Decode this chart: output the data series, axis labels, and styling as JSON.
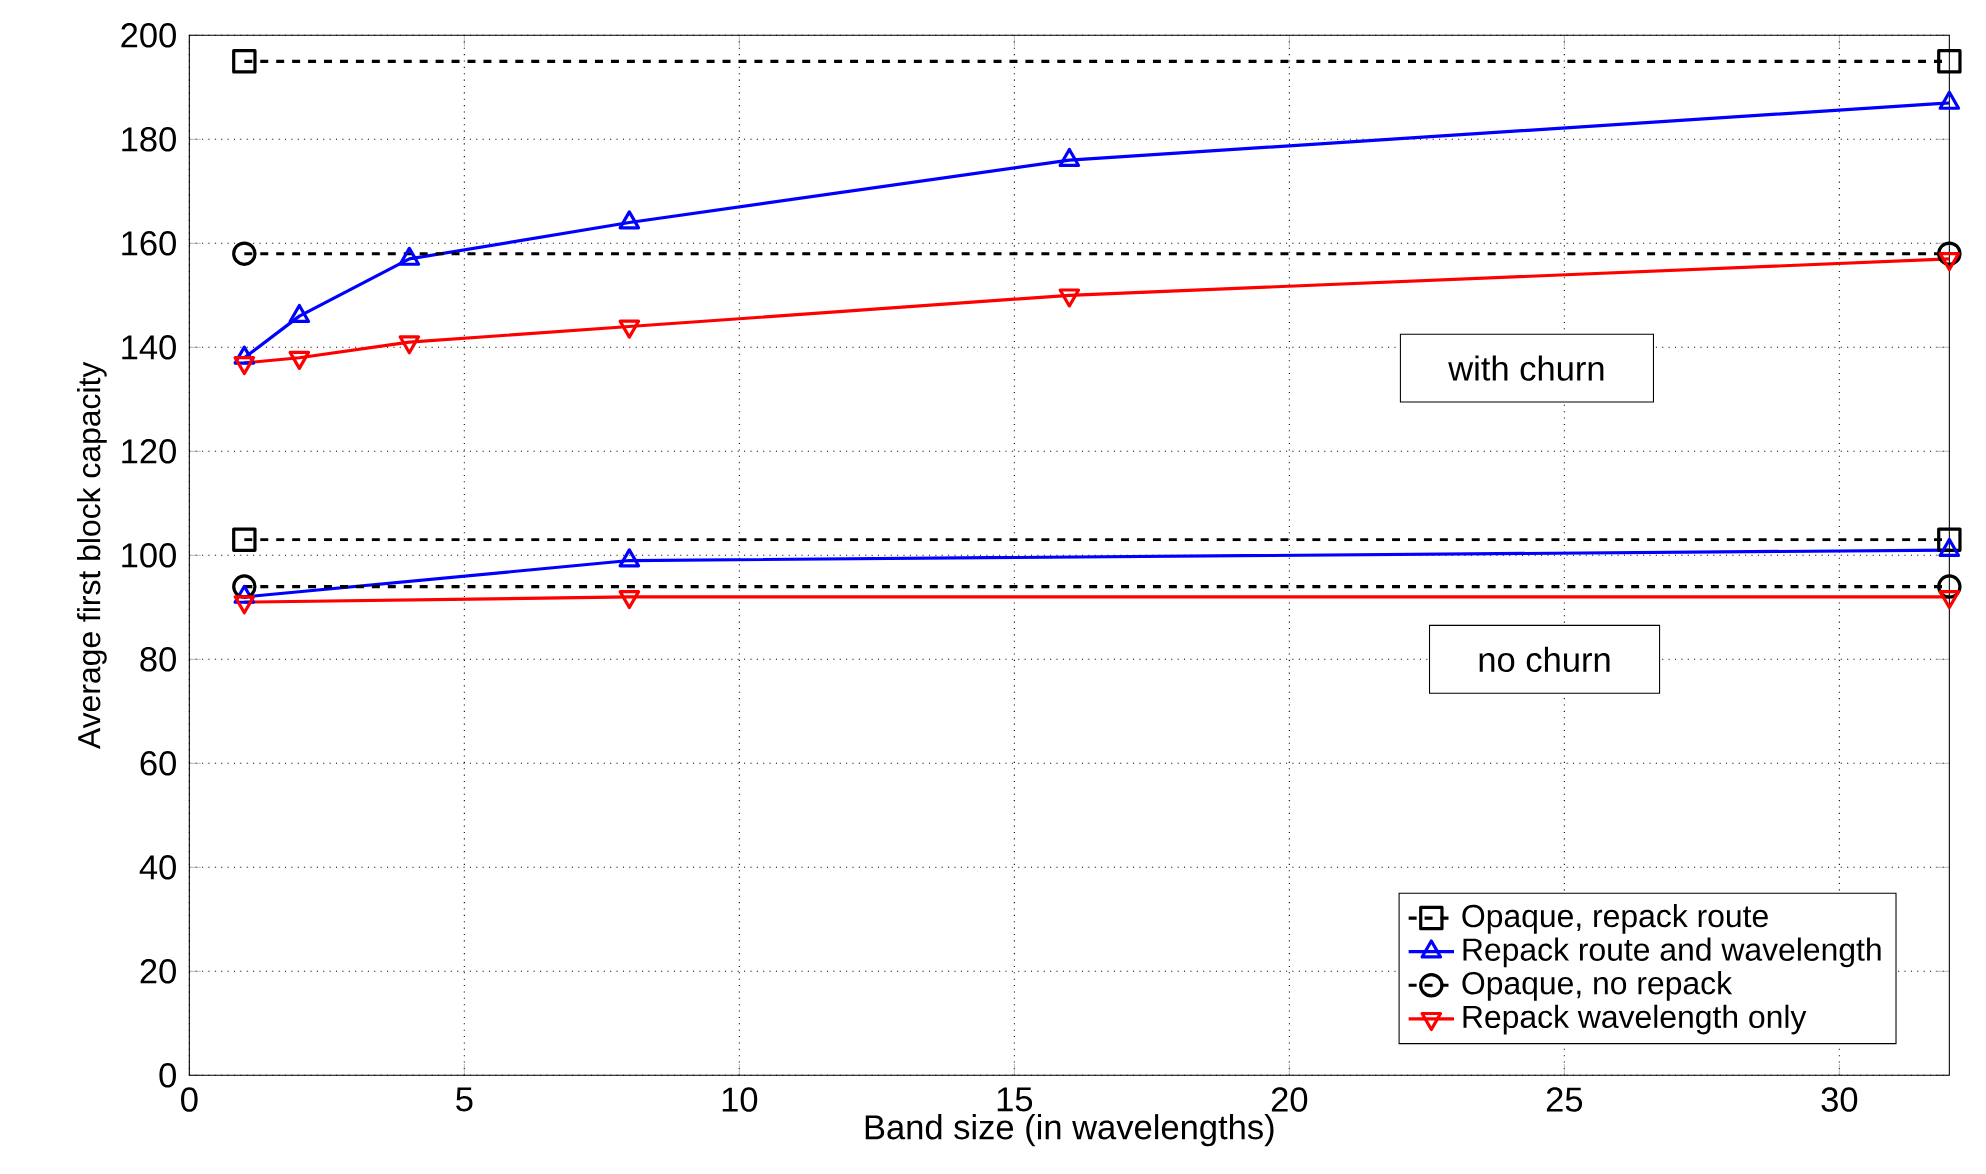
{
  "chart_data": {
    "type": "line",
    "xlabel": "Band size (in wavelengths)",
    "ylabel": "Average first block capacity",
    "xlim": [
      0,
      32
    ],
    "xticks": [
      0,
      5,
      10,
      15,
      20,
      25,
      30
    ],
    "ylim": [
      0,
      200
    ],
    "yticks": [
      0,
      20,
      40,
      60,
      80,
      100,
      120,
      140,
      160,
      180,
      200
    ],
    "grid": true,
    "legend": "bottom right",
    "annotations": [
      "with churn",
      "no churn"
    ],
    "series": [
      {
        "name": "Opaque, repack route",
        "color": "#000000",
        "marker": "square",
        "line_style": "dashed",
        "x": [
          1,
          32
        ],
        "values": [
          195,
          195
        ]
      },
      {
        "name": "Repack route and wavelength",
        "color": "#0000ff",
        "marker": "triangle",
        "line_style": "solid",
        "x": [
          1,
          2,
          4,
          8,
          16,
          32
        ],
        "values": [
          138,
          146,
          157,
          164,
          176,
          187
        ]
      },
      {
        "name": "Opaque, no repack",
        "color": "#000000",
        "marker": "circle",
        "line_style": "dashed",
        "x": [
          1,
          32
        ],
        "values": [
          158,
          158
        ]
      },
      {
        "name": "Repack wavelength only",
        "color": "#ff0000",
        "marker": "triangle down",
        "line_style": "solid",
        "x": [
          1,
          2,
          4,
          8,
          16,
          32
        ],
        "values": [
          137,
          138,
          141,
          144,
          150,
          157
        ]
      },
      {
        "color": "#000000",
        "marker": "square",
        "line_style": "dashed",
        "x": [
          1,
          32
        ],
        "values": [
          103,
          103
        ]
      },
      {
        "color": "#0000ff",
        "marker": "triangle",
        "line_style": "solid",
        "x": [
          1,
          8,
          32
        ],
        "values": [
          92,
          99,
          101
        ]
      },
      {
        "color": "#000000",
        "marker": "circle",
        "line_style": "dashed",
        "x": [
          1,
          32
        ],
        "values": [
          94,
          94
        ]
      },
      {
        "color": "#ff0000",
        "marker": "triangle down",
        "line_style": "solid",
        "x": [
          1,
          8,
          32
        ],
        "values": [
          91,
          92,
          92
        ]
      }
    ]
  }
}
